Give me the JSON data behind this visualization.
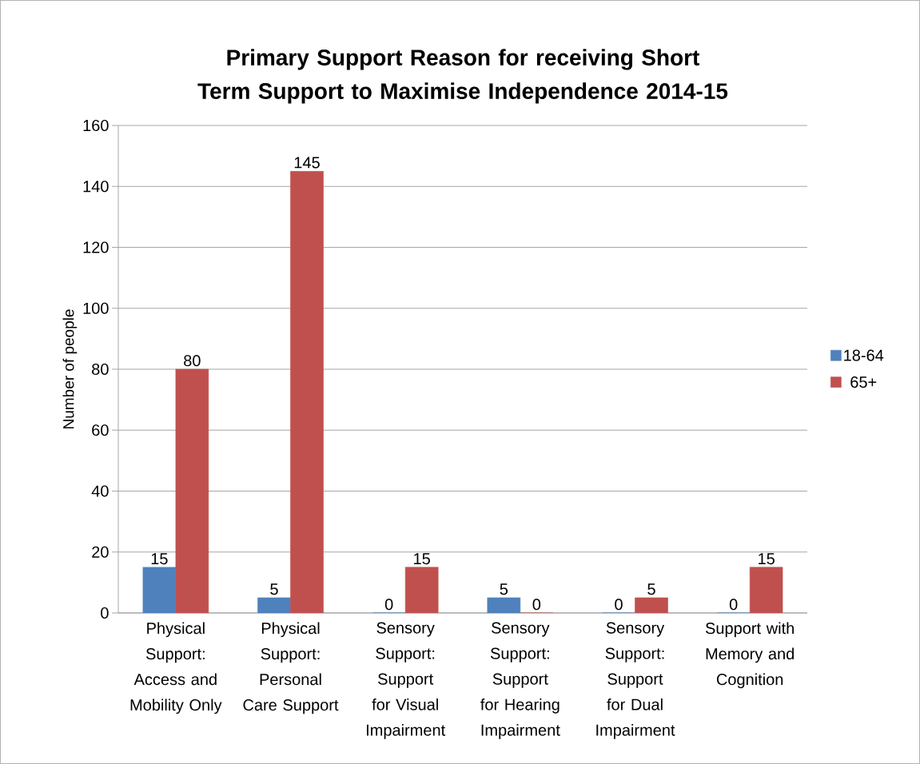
{
  "chart_data": {
    "type": "bar",
    "title": "Primary Support Reason for receiving Short Term Support to Maximise Independence 2014-15",
    "ylabel": "Number of people",
    "categories": [
      "Physical Support: Access and Mobility Only",
      "Physical Support: Personal Care Support",
      "Sensory Support: Support for Visual Impairment",
      "Sensory Support: Support for Hearing Impairment",
      "Sensory Support: Support for Dual Impairment",
      "Support with Memory and Cognition"
    ],
    "series": [
      {
        "name": "18-64",
        "color": "#4f81bd",
        "values": [
          15,
          5,
          0,
          5,
          0,
          0
        ]
      },
      {
        "name": "65+",
        "color": "#c0504d",
        "values": [
          80,
          145,
          15,
          0,
          5,
          15
        ]
      }
    ],
    "ylim": [
      0,
      160
    ],
    "yticks": [
      0,
      20,
      40,
      60,
      80,
      100,
      120,
      140,
      160
    ],
    "grid": "y",
    "legend": "right",
    "data_labels": true
  }
}
